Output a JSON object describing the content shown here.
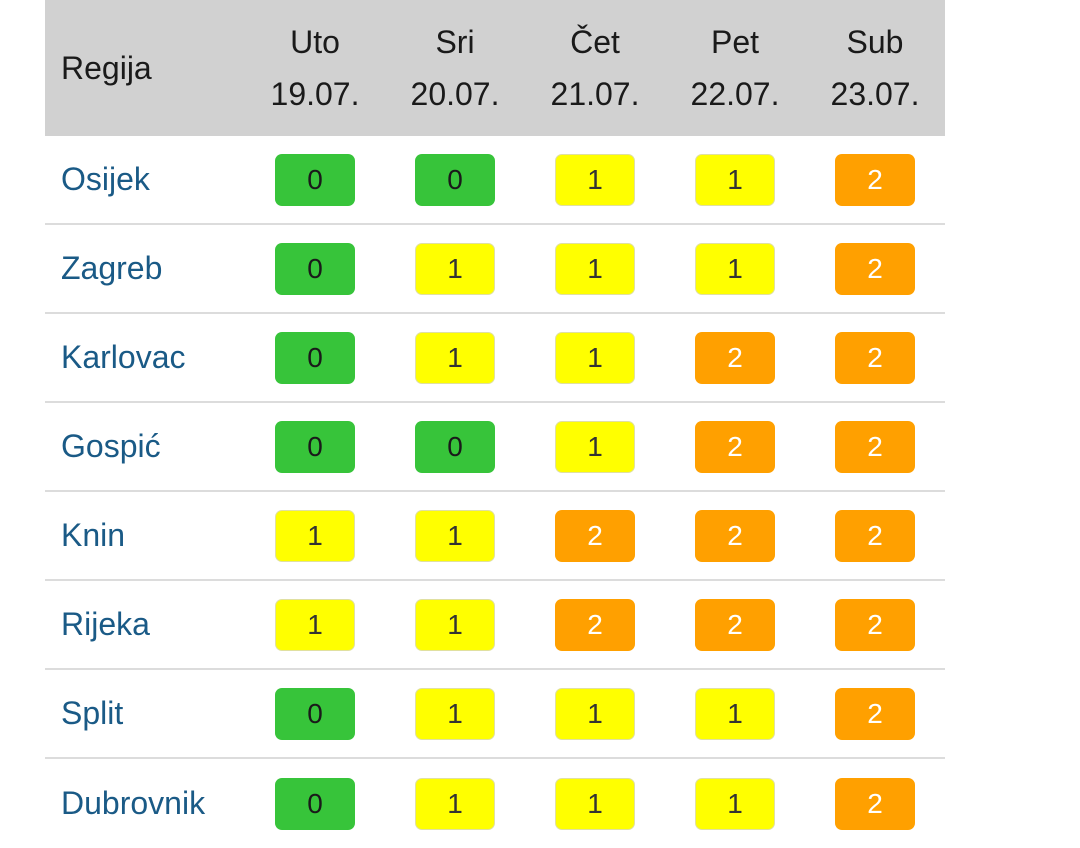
{
  "table": {
    "header": {
      "region_label": "Regija",
      "days": [
        {
          "name": "Uto",
          "date": "19.07."
        },
        {
          "name": "Sri",
          "date": "20.07."
        },
        {
          "name": "Čet",
          "date": "21.07."
        },
        {
          "name": "Pet",
          "date": "22.07."
        },
        {
          "name": "Sub",
          "date": "23.07."
        }
      ]
    },
    "rows": [
      {
        "region": "Osijek",
        "levels": [
          "0",
          "0",
          "1",
          "1",
          "2"
        ]
      },
      {
        "region": "Zagreb",
        "levels": [
          "0",
          "1",
          "1",
          "1",
          "2"
        ]
      },
      {
        "region": "Karlovac",
        "levels": [
          "0",
          "1",
          "1",
          "2",
          "2"
        ]
      },
      {
        "region": "Gospić",
        "levels": [
          "0",
          "0",
          "1",
          "2",
          "2"
        ]
      },
      {
        "region": "Knin",
        "levels": [
          "1",
          "1",
          "2",
          "2",
          "2"
        ]
      },
      {
        "region": "Rijeka",
        "levels": [
          "1",
          "1",
          "2",
          "2",
          "2"
        ]
      },
      {
        "region": "Split",
        "levels": [
          "0",
          "1",
          "1",
          "1",
          "2"
        ]
      },
      {
        "region": "Dubrovnik",
        "levels": [
          "0",
          "1",
          "1",
          "1",
          "2"
        ]
      }
    ]
  },
  "level_colors": {
    "0": "#37c43a",
    "1": "#ffff00",
    "2": "#ffa000"
  },
  "region_text_color": "#1a5a86"
}
